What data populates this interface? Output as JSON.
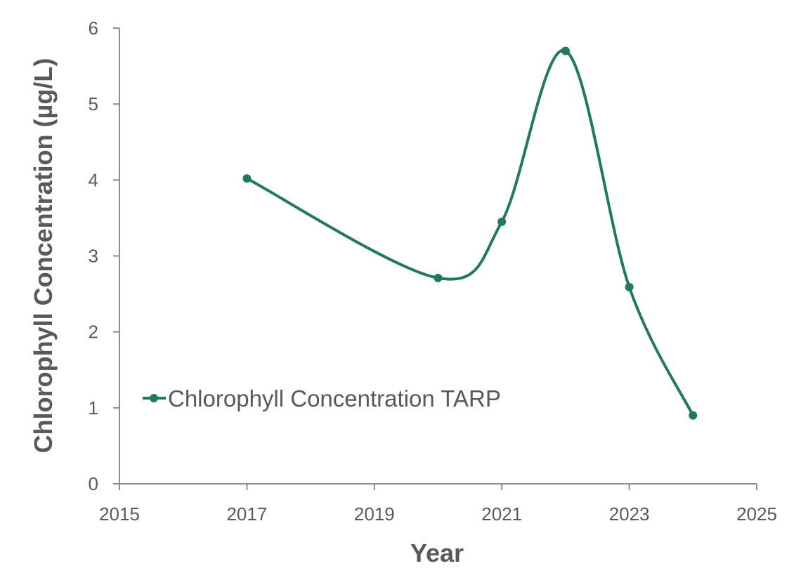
{
  "chart_data": {
    "type": "scatter",
    "title": "",
    "xlabel": "Year",
    "ylabel": "Chlorophyll Concentration (µg/L)",
    "xlim": [
      2015,
      2025
    ],
    "ylim": [
      0,
      6
    ],
    "xticks": [
      2015,
      2017,
      2019,
      2021,
      2023,
      2025
    ],
    "yticks": [
      0,
      1,
      2,
      3,
      4,
      5,
      6
    ],
    "grid": false,
    "smoothed": true,
    "legend_position": "left",
    "series": [
      {
        "name": "Chlorophyll Concentration TARP",
        "color": "#217a5a",
        "x": [
          2017,
          2020,
          2021,
          2022,
          2023,
          2024
        ],
        "y": [
          4.02,
          2.71,
          3.45,
          5.7,
          2.59,
          0.9
        ]
      }
    ]
  }
}
